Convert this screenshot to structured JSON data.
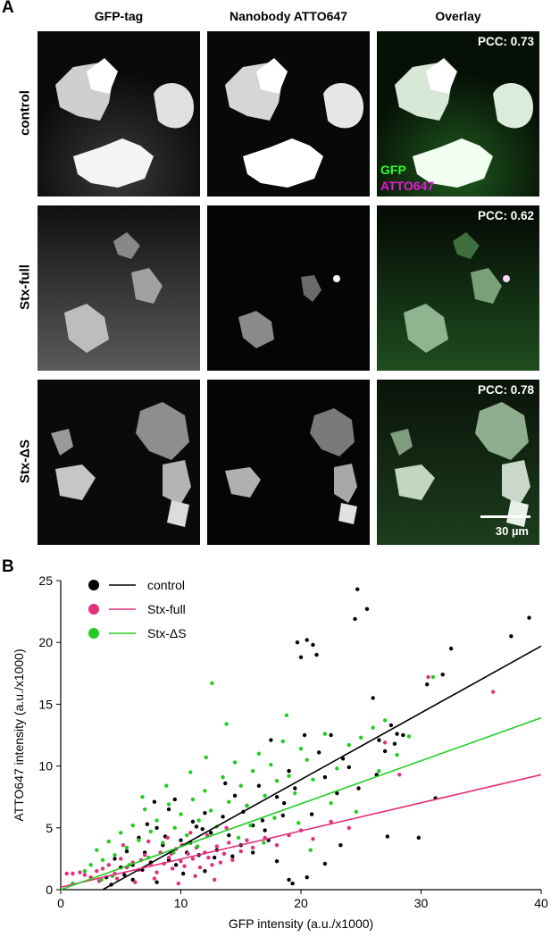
{
  "panel_a_label": "A",
  "panel_b_label": "B",
  "columns": [
    "GFP-tag",
    "Nanobody ATTO647",
    "Overlay"
  ],
  "rows": [
    {
      "label": "control",
      "pcc": "PCC: 0.73"
    },
    {
      "label": "Stx-full",
      "pcc": "PCC: 0.62"
    },
    {
      "label": "Stx-ΔS",
      "pcc": "PCC: 0.78"
    }
  ],
  "overlay_legend": {
    "gfp": "GFP",
    "atto": "ATTO647"
  },
  "scale_bar_label": "30 µm",
  "colors": {
    "control": "#000000",
    "stx_full": "#e0307a",
    "stx_ds": "#22cc22",
    "gfp_green": "#2bff2b",
    "atto_magenta": "#e81ad6"
  },
  "chart_data": {
    "type": "scatter",
    "xlabel": "GFP intensity (a.u./x1000)",
    "ylabel": "ATTO647 intensity (a.u./x1000)",
    "xlim": [
      0,
      40
    ],
    "ylim": [
      0,
      25
    ],
    "xticks": [
      0,
      10,
      20,
      30,
      40
    ],
    "yticks": [
      0,
      5,
      10,
      15,
      20,
      25
    ],
    "legend_position": "top-left",
    "series": [
      {
        "name": "control",
        "color": "#000000",
        "fit": {
          "x": [
            3.5,
            40
          ],
          "y": [
            0,
            19.7
          ]
        },
        "points": [
          [
            4.5,
            2.5
          ],
          [
            5.0,
            1.8
          ],
          [
            5.5,
            3.1
          ],
          [
            6.0,
            2.0
          ],
          [
            6.5,
            4.2
          ],
          [
            7.0,
            3.0
          ],
          [
            7.5,
            2.2
          ],
          [
            8.0,
            5.0
          ],
          [
            8.5,
            3.6
          ],
          [
            9.0,
            2.4
          ],
          [
            9.5,
            7.3
          ],
          [
            10.0,
            4.0
          ],
          [
            10.5,
            3.0
          ],
          [
            11.0,
            5.5
          ],
          [
            11.5,
            2.8
          ],
          [
            12.0,
            6.2
          ],
          [
            12.5,
            4.6
          ],
          [
            13.0,
            3.2
          ],
          [
            13.5,
            5.9
          ],
          [
            14.0,
            4.4
          ],
          [
            14.5,
            7.6
          ],
          [
            15.0,
            3.6
          ],
          [
            15.5,
            6.8
          ],
          [
            16.0,
            5.2
          ],
          [
            16.5,
            8.4
          ],
          [
            17.0,
            4.8
          ],
          [
            17.5,
            12.1
          ],
          [
            18.0,
            7.5
          ],
          [
            18.5,
            6.0
          ],
          [
            19.0,
            9.6
          ],
          [
            19.5,
            8.2
          ],
          [
            19.7,
            20.0
          ],
          [
            20.0,
            18.8
          ],
          [
            20.5,
            20.2
          ],
          [
            21.0,
            19.8
          ],
          [
            21.3,
            19.0
          ],
          [
            20.3,
            12.5
          ],
          [
            21.5,
            11.1
          ],
          [
            22.0,
            9.1
          ],
          [
            22.5,
            12.5
          ],
          [
            23.0,
            7.8
          ],
          [
            23.5,
            10.6
          ],
          [
            24.0,
            9.9
          ],
          [
            24.5,
            21.9
          ],
          [
            24.7,
            24.3
          ],
          [
            25.5,
            22.7
          ],
          [
            26.0,
            15.5
          ],
          [
            26.5,
            12.1
          ],
          [
            27.0,
            11.2
          ],
          [
            27.5,
            13.3
          ],
          [
            28.0,
            12.6
          ],
          [
            28.5,
            12.5
          ],
          [
            30.5,
            16.6
          ],
          [
            31.2,
            7.4
          ],
          [
            31.8,
            17.4
          ],
          [
            32.5,
            19.5
          ],
          [
            37.5,
            20.5
          ],
          [
            39.0,
            22.0
          ],
          [
            19.0,
            0.8
          ],
          [
            19.3,
            0.5
          ],
          [
            20.5,
            1.0
          ],
          [
            29.8,
            4.2
          ],
          [
            27.2,
            4.3
          ],
          [
            22.0,
            2.1
          ],
          [
            18.0,
            2.3
          ],
          [
            16.0,
            3.0
          ],
          [
            12.0,
            1.5
          ],
          [
            8.0,
            0.6
          ],
          [
            6.0,
            0.8
          ],
          [
            9.0,
            6.5
          ],
          [
            10.8,
            3.8
          ],
          [
            11.3,
            5.1
          ],
          [
            15.2,
            6.3
          ],
          [
            17.3,
            4.0
          ],
          [
            23.3,
            3.6
          ],
          [
            24.8,
            8.2
          ],
          [
            13.7,
            8.6
          ],
          [
            12.8,
            2.6
          ],
          [
            7.8,
            7.1
          ],
          [
            8.7,
            4.3
          ],
          [
            5.3,
            1.2
          ],
          [
            6.8,
            1.6
          ],
          [
            9.6,
            2.0
          ],
          [
            10.2,
            1.3
          ],
          [
            14.3,
            2.7
          ],
          [
            16.8,
            5.6
          ],
          [
            18.6,
            7.0
          ],
          [
            20.9,
            6.1
          ],
          [
            26.3,
            9.3
          ],
          [
            27.8,
            11.8
          ],
          [
            3.8,
            1.0
          ],
          [
            4.2,
            0.4
          ],
          [
            7.2,
            5.3
          ],
          [
            11.8,
            4.9
          ]
        ]
      },
      {
        "name": "Stx-full",
        "color": "#e0307a",
        "fit": {
          "x": [
            0,
            40
          ],
          "y": [
            0.2,
            9.3
          ]
        },
        "points": [
          [
            0.5,
            1.3
          ],
          [
            1.0,
            1.3
          ],
          [
            1.6,
            1.4
          ],
          [
            2.0,
            1.2
          ],
          [
            3.0,
            1.5
          ],
          [
            3.5,
            1.7
          ],
          [
            4.0,
            2.0
          ],
          [
            4.5,
            1.3
          ],
          [
            5.0,
            2.5
          ],
          [
            5.5,
            1.8
          ],
          [
            6.0,
            2.2
          ],
          [
            6.5,
            1.6
          ],
          [
            7.0,
            2.8
          ],
          [
            7.5,
            2.0
          ],
          [
            8.0,
            1.4
          ],
          [
            8.3,
            3.0
          ],
          [
            8.6,
            2.1
          ],
          [
            9.0,
            2.6
          ],
          [
            9.3,
            1.7
          ],
          [
            9.6,
            3.3
          ],
          [
            10.0,
            2.3
          ],
          [
            10.3,
            1.9
          ],
          [
            10.6,
            2.9
          ],
          [
            11.0,
            2.5
          ],
          [
            11.3,
            3.4
          ],
          [
            11.6,
            1.8
          ],
          [
            12.0,
            3.0
          ],
          [
            12.3,
            2.6
          ],
          [
            12.6,
            2.0
          ],
          [
            13.0,
            3.5
          ],
          [
            13.3,
            2.2
          ],
          [
            13.6,
            2.9
          ],
          [
            14.0,
            3.8
          ],
          [
            14.3,
            2.4
          ],
          [
            15.0,
            3.1
          ],
          [
            15.5,
            4.0
          ],
          [
            16.0,
            3.4
          ],
          [
            17.0,
            4.2
          ],
          [
            18.0,
            3.6
          ],
          [
            19.0,
            4.4
          ],
          [
            20.0,
            4.8
          ],
          [
            21.0,
            4.1
          ],
          [
            22.5,
            5.5
          ],
          [
            24.0,
            5.0
          ],
          [
            27.0,
            11.9
          ],
          [
            28.2,
            9.3
          ],
          [
            30.6,
            17.2
          ],
          [
            36.0,
            16.0
          ],
          [
            6.2,
            0.6
          ],
          [
            7.8,
            0.9
          ],
          [
            9.8,
            0.5
          ],
          [
            11.2,
            1.1
          ],
          [
            12.8,
            0.8
          ],
          [
            5.2,
            3.6
          ],
          [
            7.3,
            3.9
          ],
          [
            8.9,
            4.2
          ],
          [
            10.8,
            4.6
          ],
          [
            12.2,
            4.4
          ],
          [
            13.8,
            5.0
          ],
          [
            9.2,
            2.9
          ],
          [
            10.1,
            3.6
          ],
          [
            6.7,
            2.4
          ],
          [
            4.7,
            0.9
          ],
          [
            3.2,
            0.7
          ],
          [
            2.5,
            1.0
          ]
        ]
      },
      {
        "name": "Stx-ΔS",
        "color": "#22cc22",
        "fit": {
          "x": [
            0,
            40
          ],
          "y": [
            0,
            13.9
          ]
        },
        "points": [
          [
            1.0,
            0.5
          ],
          [
            2.0,
            1.5
          ],
          [
            2.5,
            2.0
          ],
          [
            3.0,
            3.2
          ],
          [
            3.5,
            2.4
          ],
          [
            4.0,
            3.9
          ],
          [
            4.5,
            2.8
          ],
          [
            5.0,
            4.6
          ],
          [
            5.5,
            3.4
          ],
          [
            6.0,
            5.2
          ],
          [
            6.5,
            4.0
          ],
          [
            7.0,
            6.5
          ],
          [
            7.5,
            4.7
          ],
          [
            8.0,
            5.6
          ],
          [
            8.5,
            3.8
          ],
          [
            9.0,
            6.9
          ],
          [
            9.5,
            5.0
          ],
          [
            10.0,
            6.1
          ],
          [
            10.5,
            4.4
          ],
          [
            11.0,
            7.3
          ],
          [
            11.5,
            5.6
          ],
          [
            12.0,
            8.0
          ],
          [
            12.5,
            6.4
          ],
          [
            13.0,
            5.1
          ],
          [
            13.5,
            9.1
          ],
          [
            14.0,
            7.1
          ],
          [
            14.5,
            10.3
          ],
          [
            15.0,
            8.4
          ],
          [
            15.5,
            6.8
          ],
          [
            16.0,
            9.6
          ],
          [
            16.5,
            11.0
          ],
          [
            17.0,
            7.6
          ],
          [
            17.5,
            10.1
          ],
          [
            18.0,
            8.8
          ],
          [
            18.5,
            12.0
          ],
          [
            19.0,
            9.2
          ],
          [
            19.5,
            7.8
          ],
          [
            20.0,
            11.4
          ],
          [
            20.5,
            10.5
          ],
          [
            21.0,
            8.9
          ],
          [
            22.0,
            12.6
          ],
          [
            23.0,
            9.8
          ],
          [
            24.0,
            11.7
          ],
          [
            25.0,
            12.3
          ],
          [
            26.0,
            13.1
          ],
          [
            27.0,
            13.7
          ],
          [
            28.0,
            10.9
          ],
          [
            31.0,
            17.2
          ],
          [
            29.0,
            12.4
          ],
          [
            13.8,
            13.4
          ],
          [
            12.6,
            16.7
          ],
          [
            6.8,
            7.5
          ],
          [
            8.8,
            8.4
          ],
          [
            10.8,
            9.5
          ],
          [
            7.3,
            2.6
          ],
          [
            9.4,
            3.0
          ],
          [
            11.4,
            3.5
          ],
          [
            15.8,
            5.2
          ],
          [
            17.8,
            5.8
          ],
          [
            19.8,
            5.4
          ],
          [
            22.5,
            7.0
          ],
          [
            24.6,
            6.3
          ],
          [
            5.7,
            2.0
          ],
          [
            4.3,
            1.1
          ],
          [
            3.4,
            0.8
          ],
          [
            14.8,
            4.2
          ],
          [
            16.9,
            3.8
          ],
          [
            20.8,
            3.2
          ],
          [
            12.1,
            10.7
          ],
          [
            18.8,
            14.1
          ],
          [
            26.5,
            9.6
          ]
        ]
      }
    ]
  }
}
